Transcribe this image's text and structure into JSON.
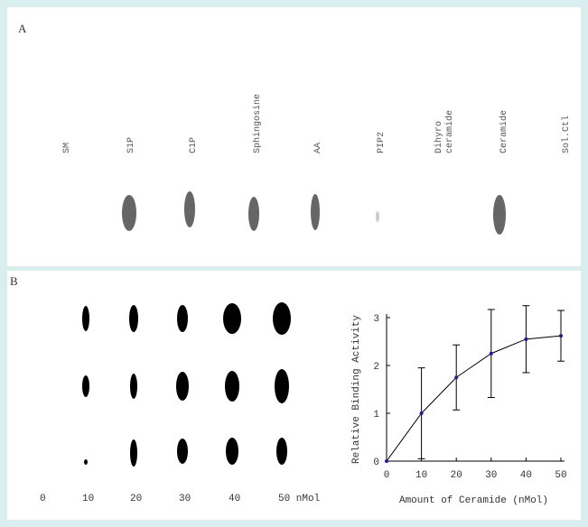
{
  "panel_a": {
    "label": "A",
    "lanes": [
      [
        "SM"
      ],
      [
        "S1P"
      ],
      [
        "C1P"
      ],
      [
        "Sphingosine"
      ],
      [
        "AA"
      ],
      [
        "PIP2"
      ],
      [
        "Dihyro",
        "ceramide"
      ],
      [
        "Ceramide"
      ],
      [
        "Sol.Ctl"
      ]
    ]
  },
  "panel_b": {
    "label": "B",
    "amounts": [
      "0",
      "10",
      "20",
      "30",
      "40",
      "50 nMol"
    ]
  },
  "chart_data": {
    "type": "line",
    "x_label": "Amount of Ceramide (nMol)",
    "y_label": "Relative Binding Activity",
    "x": [
      0,
      10,
      20,
      30,
      40,
      50
    ],
    "series": [
      {
        "color": "#1a1aa0",
        "values": [
          0,
          1.0,
          1.75,
          2.25,
          2.55,
          2.62
        ],
        "errors": [
          0,
          0.95,
          0.68,
          0.92,
          0.7,
          0.53
        ]
      }
    ],
    "xlim": [
      0,
      50
    ],
    "ylim": [
      0,
      3
    ],
    "xticks": [
      0,
      10,
      20,
      30,
      40,
      50
    ],
    "yticks": [
      0,
      1,
      2,
      3
    ]
  }
}
